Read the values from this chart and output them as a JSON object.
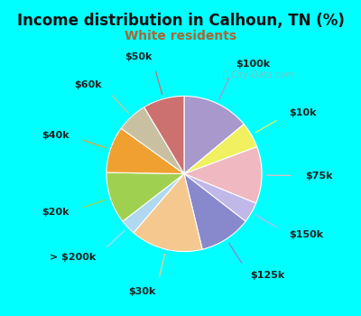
{
  "title": "Income distribution in Calhoun, TN (%)",
  "subtitle": "White residents",
  "title_color": "#111111",
  "subtitle_color": "#aa6633",
  "bg_cyan": "#00ffff",
  "watermark": "City-Data.com",
  "labels": [
    "$100k",
    "$10k",
    "$75k",
    "$150k",
    "$125k",
    "$30k",
    "> $200k",
    "$20k",
    "$40k",
    "$60k",
    "$50k"
  ],
  "values": [
    13,
    5,
    11,
    4,
    10,
    14,
    3,
    10,
    9,
    6,
    8
  ],
  "colors": [
    "#a898cc",
    "#f0f060",
    "#f0b8c0",
    "#7878c8",
    "#f5c890",
    "#a8d8f0",
    "#98cc58",
    "#f0a030",
    "#c8c0a0",
    "#cc7070",
    "#a898cc"
  ],
  "title_fontsize": 12,
  "subtitle_fontsize": 10,
  "label_fontsize": 8,
  "figsize": [
    4.0,
    3.5
  ],
  "dpi": 100
}
